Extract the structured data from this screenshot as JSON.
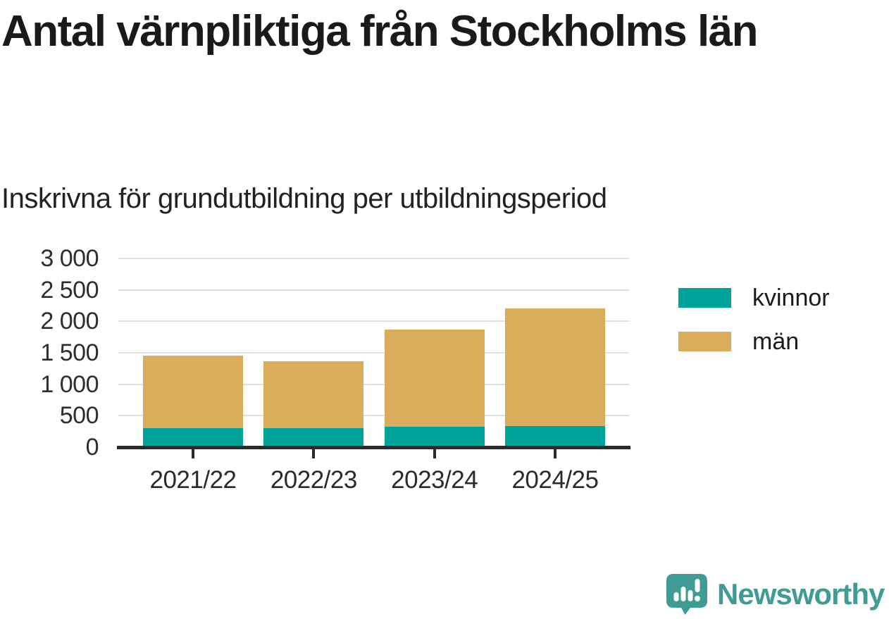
{
  "header": {
    "title": "Antal värnpliktiga från Stockholms län",
    "subtitle": "Inskrivna för grundutbildning per utbildningsperiod"
  },
  "chart_data": {
    "type": "bar",
    "stacked": true,
    "title": "Antal värnpliktiga från Stockholms län",
    "subtitle": "Inskrivna för grundutbildning per utbildningsperiod",
    "categories": [
      "2021/22",
      "2022/23",
      "2023/24",
      "2024/25"
    ],
    "series": [
      {
        "name": "kvinnor",
        "color": "#00a399",
        "values": [
          300,
          300,
          320,
          340
        ]
      },
      {
        "name": "män",
        "color": "#d9ad5a",
        "values": [
          1160,
          1070,
          1550,
          1870
        ]
      }
    ],
    "stacked_totals": [
      1460,
      1370,
      1870,
      2210
    ],
    "xlabel": "",
    "ylabel": "",
    "ylim": [
      0,
      3000
    ],
    "yticks": [
      0,
      500,
      1000,
      1500,
      2000,
      2500,
      3000
    ],
    "ytick_labels": [
      "0",
      "500",
      "1 000",
      "1 500",
      "2 000",
      "2 500",
      "3 000"
    ],
    "grid": true,
    "legend_position": "right-top"
  },
  "legend": {
    "items": [
      {
        "label": "kvinnor",
        "color": "#00a399"
      },
      {
        "label": "män",
        "color": "#d9ad5a"
      }
    ]
  },
  "footer": {
    "brand": "Newsworthy",
    "brand_color": "#3e9c95",
    "logo_icon": "speech-bubble-bar-chart-icon"
  },
  "colors": {
    "gridline": "#e0e0e0",
    "axis": "#2b2b2b",
    "title_text": "#1a1a1a"
  }
}
